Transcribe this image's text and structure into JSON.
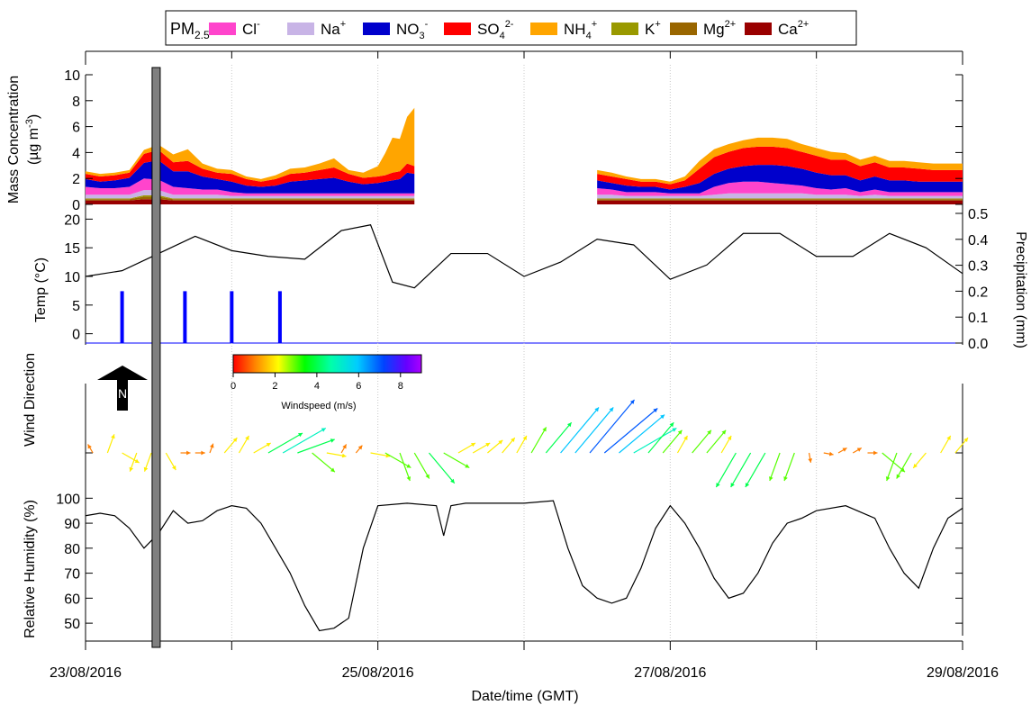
{
  "legend": {
    "prefix_main": "PM",
    "prefix_sub": "2.5",
    "prefix_colon": ":",
    "items": [
      {
        "base": "Cl",
        "sup": "-",
        "color": "#ff44cc"
      },
      {
        "base": "Na",
        "sup": "+",
        "color": "#c8b4e6"
      },
      {
        "base": "NO",
        "sub": "3",
        "sup": "-",
        "color": "#0000cc"
      },
      {
        "base": "SO",
        "sub": "4",
        "sup": "2-",
        "color": "#ff0000"
      },
      {
        "base": "NH",
        "sub": "4",
        "sup": "+",
        "color": "#ffa500"
      },
      {
        "base": "K",
        "sup": "+",
        "color": "#999900"
      },
      {
        "base": "Mg",
        "sup": "2+",
        "color": "#996600"
      },
      {
        "base": "Ca",
        "sup": "2+",
        "color": "#990000"
      }
    ]
  },
  "axes": {
    "mass_ylabel_line1": "Mass Concentration",
    "mass_ylabel_line2": "(µg m",
    "mass_ylabel_sup": "-3",
    "mass_ylabel_end": ")",
    "temp_ylabel": "Temp (°C)",
    "precip_ylabel": "Precipitation (mm)",
    "wind_ylabel": "Wind Direction",
    "rh_ylabel": "Relative Humidity (%)",
    "xlabel": "Date/time (GMT)",
    "north_label": "N",
    "colorbar_label": "Windspeed (m/s)"
  },
  "chart_data": [
    {
      "type": "area",
      "panel": "mass",
      "ylim": [
        0,
        10
      ],
      "yticks": [
        0,
        2,
        4,
        6,
        8,
        10
      ],
      "x_days": [
        0,
        0.1,
        0.2,
        0.3,
        0.4,
        0.5,
        0.6,
        0.7,
        0.8,
        0.9,
        1.0,
        1.1,
        1.2,
        1.3,
        1.4,
        1.5,
        1.6,
        1.7,
        1.8,
        1.9,
        2.0,
        2.05,
        2.1,
        2.15,
        2.2,
        2.25
      ],
      "series": [
        {
          "name": "Ca2+",
          "values": [
            0.3,
            0.3,
            0.3,
            0.3,
            0.4,
            0.4,
            0.3,
            0.3,
            0.3,
            0.3,
            0.3,
            0.3,
            0.3,
            0.3,
            0.3,
            0.3,
            0.3,
            0.3,
            0.3,
            0.3,
            0.3,
            0.3,
            0.3,
            0.3,
            0.3,
            0.3
          ]
        },
        {
          "name": "Mg2+",
          "values": [
            0.1,
            0.1,
            0.1,
            0.1,
            0.2,
            0.2,
            0.1,
            0.1,
            0.1,
            0.1,
            0.1,
            0.1,
            0.1,
            0.1,
            0.1,
            0.1,
            0.1,
            0.1,
            0.1,
            0.1,
            0.1,
            0.1,
            0.1,
            0.1,
            0.1,
            0.1
          ]
        },
        {
          "name": "K+",
          "values": [
            0.05,
            0.05,
            0.05,
            0.05,
            0.1,
            0.1,
            0.05,
            0.05,
            0.05,
            0.05,
            0.05,
            0.05,
            0.05,
            0.05,
            0.05,
            0.05,
            0.05,
            0.05,
            0.05,
            0.05,
            0.05,
            0.05,
            0.05,
            0.05,
            0.05,
            0.05
          ]
        },
        {
          "name": "Na+",
          "values": [
            0.3,
            0.3,
            0.3,
            0.3,
            0.4,
            0.4,
            0.3,
            0.3,
            0.3,
            0.3,
            0.2,
            0.2,
            0.2,
            0.2,
            0.2,
            0.2,
            0.2,
            0.2,
            0.2,
            0.2,
            0.2,
            0.2,
            0.2,
            0.2,
            0.2,
            0.2
          ]
        },
        {
          "name": "Cl-",
          "values": [
            0.6,
            0.5,
            0.5,
            0.6,
            0.9,
            0.8,
            0.6,
            0.5,
            0.4,
            0.4,
            0.3,
            0.2,
            0.2,
            0.2,
            0.2,
            0.2,
            0.2,
            0.2,
            0.2,
            0.2,
            0.2,
            0.2,
            0.2,
            0.2,
            0.2,
            0.2
          ]
        },
        {
          "name": "NO3-",
          "values": [
            0.6,
            0.5,
            0.6,
            0.7,
            1.2,
            1.5,
            1.2,
            1.3,
            1.0,
            0.8,
            0.8,
            0.6,
            0.5,
            0.6,
            0.9,
            1.0,
            1.1,
            1.2,
            0.9,
            0.7,
            0.8,
            0.9,
            1.0,
            1.1,
            1.6,
            1.5
          ]
        },
        {
          "name": "SO42-",
          "values": [
            0.4,
            0.4,
            0.4,
            0.4,
            0.7,
            0.8,
            0.7,
            0.8,
            0.6,
            0.5,
            0.6,
            0.5,
            0.4,
            0.5,
            0.6,
            0.6,
            0.7,
            0.8,
            0.6,
            0.5,
            0.5,
            0.5,
            0.6,
            0.6,
            0.7,
            0.6
          ]
        },
        {
          "name": "NH4+",
          "values": [
            0.2,
            0.2,
            0.2,
            0.2,
            0.3,
            0.4,
            0.6,
            0.9,
            0.4,
            0.3,
            0.3,
            0.2,
            0.2,
            0.3,
            0.4,
            0.4,
            0.5,
            0.7,
            0.3,
            0.4,
            0.8,
            1.7,
            2.7,
            2.5,
            3.6,
            4.5
          ]
        }
      ],
      "x_days_b": [
        3.5,
        3.6,
        3.7,
        3.8,
        3.9,
        4.0,
        4.1,
        4.2,
        4.3,
        4.4,
        4.5,
        4.6,
        4.7,
        4.8,
        4.9,
        5.0,
        5.1,
        5.2,
        5.3,
        5.4,
        5.5,
        5.6,
        5.7,
        5.8,
        5.9,
        6.0
      ],
      "series_b": [
        {
          "name": "Ca2+",
          "values": [
            0.3,
            0.3,
            0.3,
            0.3,
            0.3,
            0.3,
            0.3,
            0.3,
            0.3,
            0.3,
            0.3,
            0.3,
            0.3,
            0.3,
            0.3,
            0.3,
            0.3,
            0.3,
            0.3,
            0.3,
            0.3,
            0.3,
            0.3,
            0.3,
            0.3,
            0.3
          ]
        },
        {
          "name": "Mg2+",
          "values": [
            0.1,
            0.1,
            0.1,
            0.1,
            0.1,
            0.1,
            0.1,
            0.1,
            0.1,
            0.1,
            0.1,
            0.1,
            0.1,
            0.1,
            0.1,
            0.1,
            0.1,
            0.1,
            0.1,
            0.1,
            0.1,
            0.1,
            0.1,
            0.1,
            0.1,
            0.1
          ]
        },
        {
          "name": "K+",
          "values": [
            0.05,
            0.05,
            0.05,
            0.05,
            0.05,
            0.05,
            0.05,
            0.05,
            0.05,
            0.05,
            0.05,
            0.05,
            0.05,
            0.05,
            0.05,
            0.05,
            0.05,
            0.05,
            0.05,
            0.05,
            0.05,
            0.05,
            0.05,
            0.05,
            0.05,
            0.05
          ]
        },
        {
          "name": "Na+",
          "values": [
            0.3,
            0.3,
            0.2,
            0.2,
            0.2,
            0.2,
            0.2,
            0.2,
            0.3,
            0.4,
            0.4,
            0.4,
            0.4,
            0.4,
            0.4,
            0.3,
            0.3,
            0.3,
            0.2,
            0.3,
            0.2,
            0.2,
            0.2,
            0.2,
            0.2,
            0.2
          ]
        },
        {
          "name": "Cl-",
          "values": [
            0.5,
            0.4,
            0.3,
            0.3,
            0.3,
            0.2,
            0.2,
            0.2,
            0.6,
            0.8,
            0.9,
            0.9,
            0.8,
            0.7,
            0.6,
            0.5,
            0.4,
            0.5,
            0.3,
            0.4,
            0.3,
            0.3,
            0.3,
            0.3,
            0.3,
            0.3
          ]
        },
        {
          "name": "NO3-",
          "values": [
            0.6,
            0.5,
            0.5,
            0.4,
            0.4,
            0.3,
            0.5,
            0.8,
            1.0,
            1.1,
            1.2,
            1.3,
            1.4,
            1.4,
            1.3,
            1.2,
            1.1,
            1.0,
            0.9,
            1.0,
            0.9,
            0.9,
            0.8,
            0.8,
            0.8,
            0.8
          ]
        },
        {
          "name": "SO42-",
          "values": [
            0.5,
            0.5,
            0.5,
            0.4,
            0.4,
            0.4,
            0.5,
            1.1,
            1.3,
            1.3,
            1.4,
            1.4,
            1.4,
            1.4,
            1.3,
            1.3,
            1.2,
            1.2,
            1.1,
            1.1,
            1.0,
            1.0,
            1.0,
            0.9,
            0.9,
            0.9
          ]
        },
        {
          "name": "NH4+",
          "values": [
            0.3,
            0.3,
            0.2,
            0.2,
            0.2,
            0.2,
            0.3,
            0.6,
            0.6,
            0.6,
            0.6,
            0.7,
            0.7,
            0.7,
            0.6,
            0.6,
            0.6,
            0.5,
            0.5,
            0.5,
            0.5,
            0.5,
            0.5,
            0.5,
            0.5,
            0.5
          ]
        }
      ]
    },
    {
      "type": "line",
      "panel": "temperature",
      "ylim": [
        -1,
        21
      ],
      "yticks": [
        0,
        5,
        10,
        15,
        20
      ],
      "x_days": [
        0,
        0.25,
        0.5,
        0.75,
        1.0,
        1.25,
        1.5,
        1.75,
        1.95,
        2.1,
        2.25,
        2.5,
        2.75,
        3.0,
        3.25,
        3.5,
        3.75,
        4.0,
        4.25,
        4.5,
        4.75,
        5.0,
        5.25,
        5.5,
        5.75,
        6.0
      ],
      "values": [
        10,
        11,
        14,
        17,
        14.5,
        13.5,
        13,
        18,
        19,
        9,
        8,
        14,
        14,
        10,
        12.5,
        16.5,
        15.5,
        9.5,
        12,
        17.5,
        17.5,
        13.5,
        13.5,
        17.5,
        15,
        10.5
      ]
    },
    {
      "type": "bar",
      "panel": "precipitation",
      "ylim": [
        0,
        0.5
      ],
      "yticks": [
        0.0,
        0.1,
        0.2,
        0.3,
        0.4,
        0.5
      ],
      "x_days": [
        0.25,
        0.68,
        1.0,
        1.33
      ],
      "values": [
        0.2,
        0.2,
        0.2,
        0.2
      ]
    },
    {
      "type": "scatter",
      "panel": "wind",
      "colorbar_ticks": [
        0,
        2,
        4,
        6,
        8
      ],
      "colorbar_range": [
        0,
        9
      ],
      "description_series": "wind vectors: direction (deg) and speed (m/s)",
      "x_days": [
        0.05,
        0.15,
        0.25,
        0.35,
        0.45,
        0.55,
        0.65,
        0.75,
        0.85,
        0.95,
        1.05,
        1.15,
        1.25,
        1.35,
        1.45,
        1.55,
        1.65,
        1.75,
        1.85,
        1.95,
        2.05,
        2.15,
        2.25,
        2.35,
        2.45,
        2.55,
        2.65,
        2.75,
        2.85,
        2.95,
        3.05,
        3.15,
        3.25,
        3.35,
        3.45,
        3.55,
        3.65,
        3.75,
        3.85,
        3.95,
        4.05,
        4.15,
        4.25,
        4.35,
        4.45,
        4.55,
        4.65,
        4.75,
        4.85,
        4.95,
        5.05,
        5.15,
        5.25,
        5.35,
        5.45,
        5.55,
        5.65,
        5.75,
        5.85,
        5.95
      ],
      "direction": [
        330,
        20,
        120,
        200,
        200,
        150,
        90,
        90,
        20,
        40,
        30,
        60,
        60,
        60,
        70,
        130,
        100,
        30,
        40,
        100,
        120,
        160,
        150,
        140,
        120,
        60,
        60,
        50,
        40,
        30,
        30,
        40,
        40,
        40,
        40,
        50,
        50,
        60,
        40,
        40,
        30,
        40,
        40,
        30,
        210,
        210,
        210,
        200,
        200,
        170,
        100,
        60,
        60,
        90,
        130,
        200,
        210,
        220,
        30,
        40
      ],
      "speed": [
        1,
        2,
        2,
        2,
        2,
        2,
        1,
        1,
        1,
        2,
        2,
        2,
        4,
        5,
        4,
        3,
        2,
        1,
        1,
        2,
        3,
        3,
        3,
        4,
        3,
        2,
        2,
        2,
        2,
        2,
        3,
        4,
        6,
        6,
        7,
        7,
        6,
        5,
        4,
        3,
        2,
        3,
        3,
        2,
        4,
        4,
        4,
        3,
        3,
        1,
        1,
        1,
        1,
        1,
        3,
        3,
        3,
        2,
        2,
        2
      ]
    },
    {
      "type": "line",
      "panel": "relative_humidity",
      "ylim": [
        45,
        103
      ],
      "yticks": [
        50,
        60,
        70,
        80,
        90,
        100
      ],
      "x_days": [
        0,
        0.1,
        0.2,
        0.3,
        0.4,
        0.5,
        0.6,
        0.7,
        0.8,
        0.9,
        1.0,
        1.1,
        1.2,
        1.3,
        1.4,
        1.5,
        1.6,
        1.7,
        1.8,
        1.9,
        2.0,
        2.2,
        2.4,
        2.45,
        2.5,
        2.6,
        2.8,
        3.0,
        3.2,
        3.3,
        3.4,
        3.5,
        3.6,
        3.7,
        3.8,
        3.9,
        4.0,
        4.1,
        4.2,
        4.3,
        4.4,
        4.5,
        4.6,
        4.7,
        4.8,
        4.9,
        5.0,
        5.2,
        5.4,
        5.5,
        5.6,
        5.7,
        5.8,
        5.9,
        6.0
      ],
      "values": [
        93,
        94,
        93,
        88,
        80,
        86,
        95,
        90,
        91,
        95,
        97,
        96,
        90,
        80,
        70,
        57,
        47,
        48,
        52,
        80,
        97,
        98,
        97,
        85,
        97,
        98,
        98,
        98,
        99,
        80,
        65,
        60,
        58,
        60,
        72,
        88,
        97,
        90,
        80,
        68,
        60,
        62,
        70,
        82,
        90,
        92,
        95,
        97,
        92,
        80,
        70,
        64,
        80,
        92,
        96
      ]
    }
  ],
  "x_axis": {
    "ticks_days": [
      0,
      1,
      2,
      3,
      4,
      5,
      6
    ],
    "tick_labels": [
      "23/08/2016",
      "",
      "25/08/2016",
      "",
      "27/08/2016",
      "",
      "29/08/2016"
    ],
    "range_days": [
      0,
      6
    ],
    "highlight_day": 0.48
  }
}
